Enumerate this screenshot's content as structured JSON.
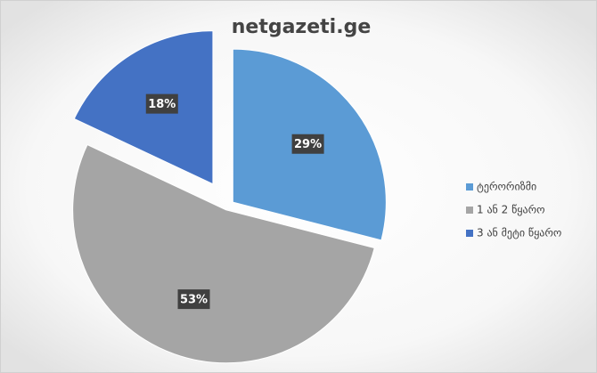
{
  "chart_data": {
    "type": "pie",
    "title": "netgazeti.ge",
    "categories": [
      "ტერორიზმი",
      "1 ან 2 წყარო",
      "3 ან მეტი წყარო"
    ],
    "values": [
      29,
      53,
      18
    ],
    "value_labels": [
      "29%",
      "53%",
      "18%"
    ],
    "colors": [
      "#5b9bd5",
      "#a5a5a5",
      "#4472c4"
    ],
    "legend": "right"
  }
}
